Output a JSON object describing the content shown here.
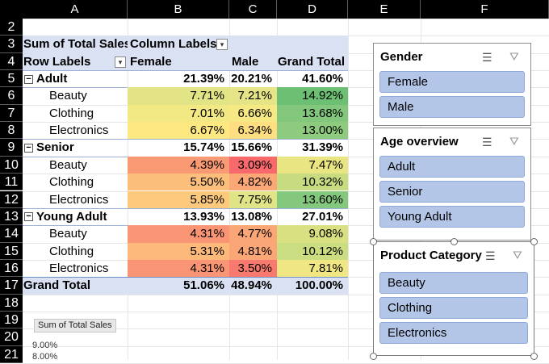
{
  "columns": [
    "A",
    "B",
    "C",
    "D",
    "E",
    "F"
  ],
  "rows": [
    "2",
    "3",
    "4",
    "5",
    "6",
    "7",
    "8",
    "9",
    "10",
    "11",
    "12",
    "13",
    "14",
    "15",
    "16",
    "17",
    "18",
    "19",
    "20",
    "21"
  ],
  "pivot": {
    "header1": {
      "label": "Sum of Total Sales",
      "col_labels": "Column Labels"
    },
    "header2": {
      "row_labels": "Row Labels",
      "female": "Female",
      "male": "Male",
      "grand_total": "Grand Total"
    },
    "rows": [
      {
        "label": "Adult",
        "group": true,
        "female": "21.39%",
        "male": "20.21%",
        "total": "41.60%"
      },
      {
        "label": "Beauty",
        "female": "7.71%",
        "male": "7.21%",
        "total": "14.92%",
        "cf": "#e2e486",
        "cm": "#e5e487",
        "ct": "#6dbf74"
      },
      {
        "label": "Clothing",
        "female": "7.01%",
        "male": "6.66%",
        "total": "13.68%",
        "cf": "#f2e884",
        "cm": "#f6e883",
        "ct": "#82c77c"
      },
      {
        "label": "Electronics",
        "female": "6.67%",
        "male": "6.34%",
        "total": "13.00%",
        "cf": "#fde882",
        "cm": "#fede80",
        "ct": "#8ecb7e"
      },
      {
        "label": "Senior",
        "group": true,
        "female": "15.74%",
        "male": "15.66%",
        "total": "31.39%"
      },
      {
        "label": "Beauty",
        "female": "4.39%",
        "male": "3.09%",
        "total": "7.47%",
        "cf": "#f99a74",
        "cm": "#f8696b",
        "ct": "#e9e583"
      },
      {
        "label": "Clothing",
        "female": "5.50%",
        "male": "4.82%",
        "total": "10.32%",
        "cf": "#fcbe7b",
        "cm": "#fba776",
        "ct": "#c7dc81"
      },
      {
        "label": "Electronics",
        "female": "5.85%",
        "male": "7.75%",
        "total": "13.60%",
        "cf": "#fdc97d",
        "cm": "#e0e386",
        "ct": "#84c87d"
      },
      {
        "label": "Young Adult",
        "group": true,
        "female": "13.93%",
        "male": "13.08%",
        "total": "27.01%"
      },
      {
        "label": "Beauty",
        "female": "4.31%",
        "male": "4.77%",
        "total": "9.08%",
        "cf": "#f99574",
        "cm": "#fba676",
        "ct": "#d8e082"
      },
      {
        "label": "Clothing",
        "female": "5.31%",
        "male": "4.81%",
        "total": "10.12%",
        "cf": "#fcb97a",
        "cm": "#fba676",
        "ct": "#cadd81"
      },
      {
        "label": "Electronics",
        "female": "4.31%",
        "male": "3.50%",
        "total": "7.81%",
        "cf": "#f99574",
        "cm": "#f87a6e",
        "ct": "#f0e683"
      }
    ],
    "grand": {
      "label": "Grand Total",
      "female": "51.06%",
      "male": "48.94%",
      "total": "100.00%"
    }
  },
  "slicers": {
    "gender": {
      "title": "Gender",
      "items": [
        "Female",
        "Male"
      ]
    },
    "age": {
      "title": "Age overview",
      "items": [
        "Adult",
        "Senior",
        "Young Adult"
      ]
    },
    "product": {
      "title": "Product Category",
      "items": [
        "Beauty",
        "Clothing",
        "Electronics"
      ]
    }
  },
  "chart": {
    "field_button": "Sum of Total Sales",
    "ticks": [
      "9.00%",
      "8.00%"
    ]
  },
  "icons": {
    "multiselect": "multi-select-icon",
    "clear_filter": "clear-filter-icon",
    "dropdown": "filter-dropdown-icon",
    "collapse": "collapse-icon"
  }
}
